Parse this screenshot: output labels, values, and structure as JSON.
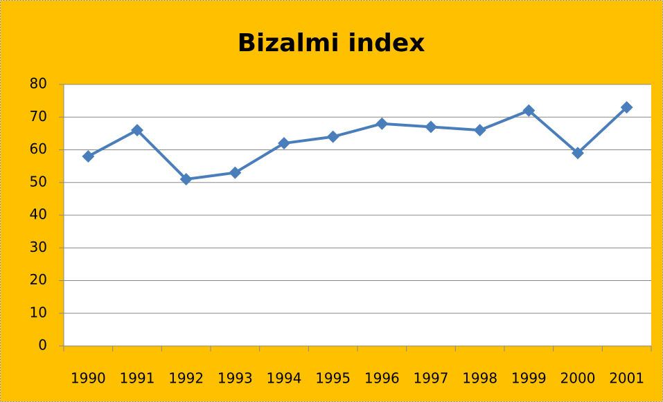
{
  "chart_data": {
    "type": "line",
    "title": "Bizalmi index",
    "categories": [
      "1990",
      "1991",
      "1992",
      "1993",
      "1994",
      "1995",
      "1996",
      "1997",
      "1998",
      "1999",
      "2000",
      "2001"
    ],
    "values": [
      58,
      66,
      51,
      53,
      62,
      64,
      68,
      67,
      66,
      72,
      59,
      73
    ],
    "color": "#4a7ebb",
    "ylim": [
      0,
      80
    ],
    "yticks": [
      0,
      10,
      20,
      30,
      40,
      50,
      60,
      70,
      80
    ],
    "grid": true
  }
}
